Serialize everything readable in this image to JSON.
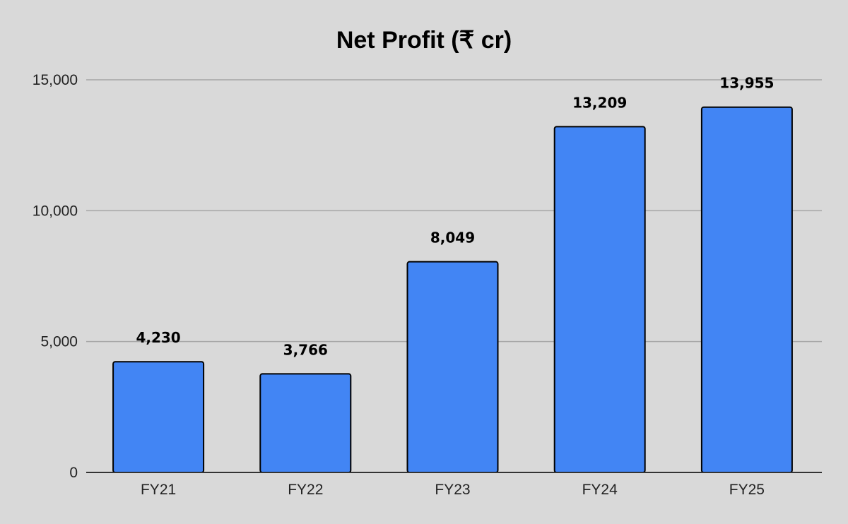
{
  "chart_data": {
    "type": "bar",
    "title": "Net Profit (₹ cr)",
    "xlabel": "",
    "ylabel": "",
    "categories": [
      "FY21",
      "FY22",
      "FY23",
      "FY24",
      "FY25"
    ],
    "values": [
      4230,
      3766,
      8049,
      13209,
      13955
    ],
    "data_labels": [
      "4,230",
      "3,766",
      "8,049",
      "13,209",
      "13,955"
    ],
    "ylim": [
      0,
      15000
    ],
    "yticks": [
      0,
      5000,
      10000,
      15000
    ],
    "ytick_labels": [
      "0",
      "5,000",
      "10,000",
      "15,000"
    ],
    "grid": true,
    "legend": "none",
    "colors": {
      "bar": "#4285f4",
      "background": "#d9d9d9"
    }
  }
}
